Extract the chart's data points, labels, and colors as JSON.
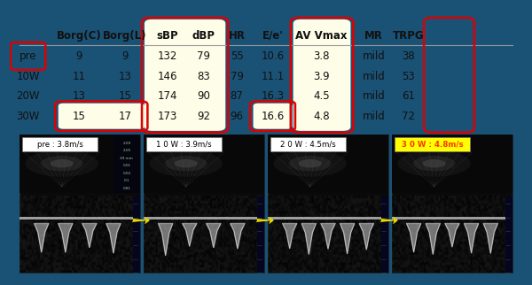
{
  "outer_border_color": "#1a5276",
  "background_color": "#ffffff",
  "table": {
    "headers": [
      "",
      "Borg(C)",
      "Borg(L)",
      "sBP",
      "dBP",
      "HR",
      "E/e'",
      "AV Vmax",
      "MR",
      "TRPG"
    ],
    "rows": [
      [
        "pre",
        "9",
        "9",
        "132",
        "79",
        "55",
        "10.6",
        "3.8",
        "mild",
        "38"
      ],
      [
        "10W",
        "11",
        "13",
        "146",
        "83",
        "79",
        "11.1",
        "3.9",
        "mild",
        "53"
      ],
      [
        "20W",
        "13",
        "15",
        "174",
        "90",
        "87",
        "16.3",
        "4.5",
        "mild",
        "61"
      ],
      [
        "30W",
        "15",
        "17",
        "173",
        "92",
        "96",
        "16.6",
        "4.8",
        "mild",
        "72"
      ]
    ]
  },
  "echo_panels": [
    {
      "label": "pre : 3.8m/s",
      "label_color": "#000000",
      "label_bg": "#ffffff"
    },
    {
      "label": "1 0 W : 3.9m/s",
      "label_color": "#000000",
      "label_bg": "#ffffff"
    },
    {
      "label": "2 0 W : 4.5m/s",
      "label_color": "#000000",
      "label_bg": "#ffffff"
    },
    {
      "label": "3 0 W : 4.8m/s",
      "label_color": "#ff3300",
      "label_bg": "#ffff00"
    }
  ],
  "arrow_color": "#e8d800",
  "yellow_fill": "#fdfde8"
}
